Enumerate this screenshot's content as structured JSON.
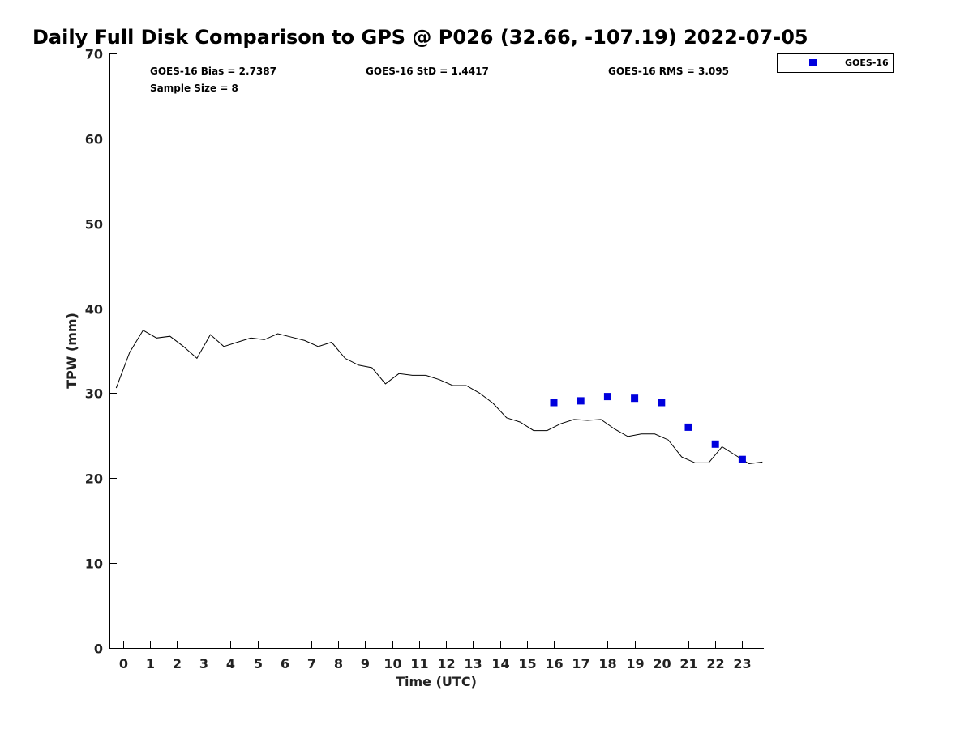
{
  "chart_data": {
    "type": "line",
    "title": "Daily Full Disk Comparison to GPS @ P026 (32.66, -107.19) 2022-07-05",
    "xlabel": "Time (UTC)",
    "ylabel": "TPW (mm)",
    "xlim": [
      -0.5,
      23.8
    ],
    "ylim": [
      0,
      70
    ],
    "x_ticks": [
      0,
      1,
      2,
      3,
      4,
      5,
      6,
      7,
      8,
      9,
      10,
      11,
      12,
      13,
      14,
      15,
      16,
      17,
      18,
      19,
      20,
      21,
      22,
      23
    ],
    "y_ticks": [
      0,
      10,
      20,
      30,
      40,
      50,
      60,
      70
    ],
    "grid": false,
    "legend_position": "top-right",
    "stats": {
      "bias": "GOES-16 Bias = 2.7387",
      "std": "GOES-16 StD = 1.4417",
      "rms": "GOES-16 RMS = 3.095",
      "sample": "Sample Size = 8"
    },
    "series": [
      {
        "kind": "line",
        "color": "#000000",
        "x": [
          -0.25,
          0.25,
          0.75,
          1.25,
          1.75,
          2.25,
          2.75,
          3.25,
          3.75,
          4.25,
          4.75,
          5.25,
          5.75,
          6.25,
          6.75,
          7.25,
          7.75,
          8.25,
          8.75,
          9.25,
          9.75,
          10.25,
          10.75,
          11.25,
          11.75,
          12.25,
          12.75,
          13.25,
          13.75,
          14.25,
          14.75,
          15.25,
          15.75,
          16.25,
          16.75,
          17.25,
          17.75,
          18.25,
          18.75,
          19.25,
          19.75,
          20.25,
          20.75,
          21.25,
          21.75,
          22.25,
          22.75,
          23.25,
          23.75
        ],
        "y": [
          30.6,
          34.8,
          37.4,
          36.5,
          36.7,
          35.5,
          34.1,
          36.9,
          35.5,
          36.0,
          36.5,
          36.3,
          37.0,
          36.6,
          36.2,
          35.5,
          36.0,
          34.1,
          33.3,
          33.0,
          31.1,
          32.3,
          32.1,
          32.1,
          31.6,
          30.9,
          30.9,
          30.0,
          28.8,
          27.1,
          26.6,
          25.6,
          25.6,
          26.4,
          26.9,
          26.8,
          26.9,
          25.8,
          24.9,
          25.2,
          25.2,
          24.5,
          22.5,
          21.8,
          21.8,
          23.7,
          22.7,
          21.7,
          21.9
        ]
      },
      {
        "name": "GOES-16",
        "kind": "scatter",
        "color": "#0000dd",
        "x": [
          16,
          17,
          18,
          19,
          20,
          21,
          22,
          23
        ],
        "y": [
          28.9,
          29.1,
          29.6,
          29.4,
          28.9,
          26.0,
          24.0,
          22.2
        ]
      }
    ]
  }
}
